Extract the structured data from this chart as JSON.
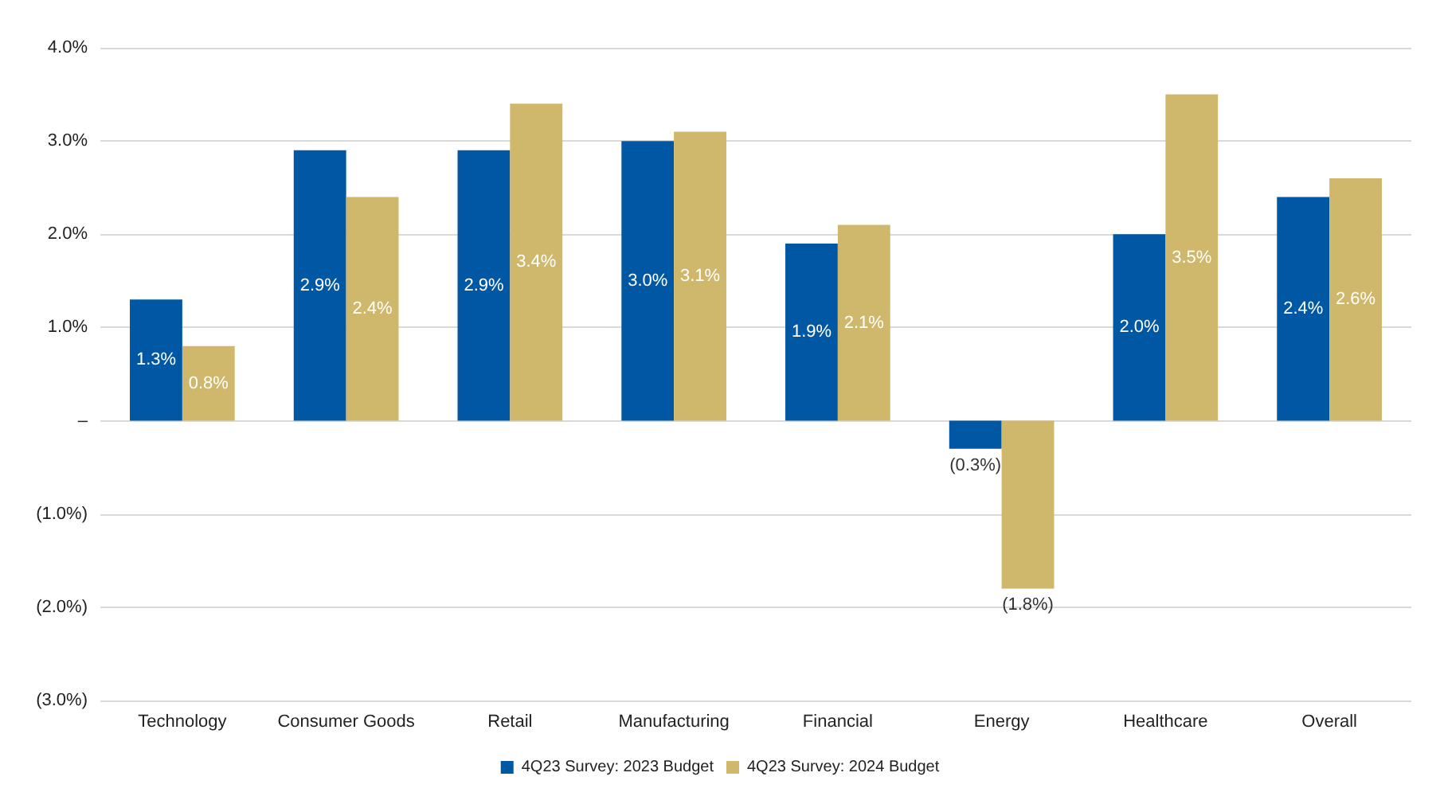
{
  "chart_data": {
    "type": "bar",
    "categories": [
      "Technology",
      "Consumer Goods",
      "Retail",
      "Manufacturing",
      "Financial",
      "Energy",
      "Healthcare",
      "Overall"
    ],
    "series": [
      {
        "name": "4Q23 Survey: 2023 Budget",
        "color": "#0057a3",
        "values": [
          1.3,
          2.9,
          2.9,
          3.0,
          1.9,
          -0.3,
          2.0,
          2.4
        ],
        "value_labels": [
          "1.3%",
          "2.9%",
          "2.9%",
          "3.0%",
          "1.9%",
          "(0.3%)",
          "2.0%",
          "2.4%"
        ]
      },
      {
        "name": "4Q23 Survey: 2024 Budget",
        "color": "#cfb76b",
        "values": [
          0.8,
          2.4,
          3.4,
          3.1,
          2.1,
          -1.8,
          3.5,
          2.6
        ],
        "value_labels": [
          "0.8%",
          "2.4%",
          "3.4%",
          "3.1%",
          "2.1%",
          "(1.8%)",
          "3.5%",
          "2.6%"
        ]
      }
    ],
    "ylim": [
      -3,
      4
    ],
    "yticks": [
      {
        "value": -3,
        "label": "(3.0%)"
      },
      {
        "value": -2,
        "label": "(2.0%)"
      },
      {
        "value": -1,
        "label": "(1.0%)"
      },
      {
        "value": 0,
        "label": "–"
      },
      {
        "value": 1,
        "label": "1.0%"
      },
      {
        "value": 2,
        "label": "2.0%"
      },
      {
        "value": 3,
        "label": "3.0%"
      },
      {
        "value": 4,
        "label": "4.0%"
      }
    ],
    "grid": "y",
    "legend": "bottom"
  }
}
